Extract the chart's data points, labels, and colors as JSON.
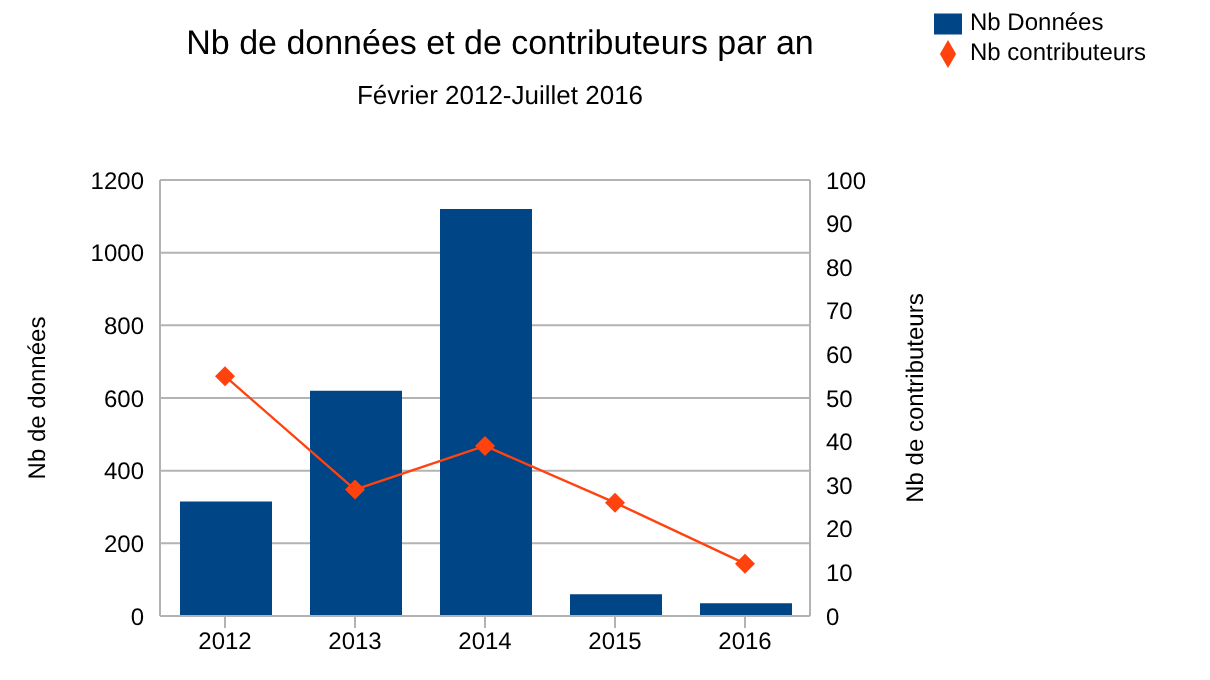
{
  "chart_data": {
    "type": "bar",
    "title": "Nb de données et de contributeurs par an",
    "subtitle": "Février 2012-Juillet 2016",
    "ylabel": "Nb de données",
    "y2label": "Nb de contributeurs",
    "categories": [
      "2012",
      "2013",
      "2014",
      "2015",
      "2016"
    ],
    "series": [
      {
        "name": "Nb Données",
        "color": "#004586",
        "values": [
          315,
          620,
          1120,
          60,
          35
        ]
      },
      {
        "name": "Nb contributeurs",
        "type": "line",
        "axis": "y2",
        "color": "#ff420e",
        "values": [
          55,
          29,
          39,
          26,
          12
        ]
      }
    ],
    "ylim": [
      0,
      1200
    ],
    "yticks": [
      0,
      200,
      400,
      600,
      800,
      1000,
      1200
    ],
    "y2lim": [
      0,
      100
    ],
    "y2ticks": [
      0,
      10,
      20,
      30,
      40,
      50,
      60,
      70,
      80,
      90,
      100
    ],
    "grid": "y",
    "legend": "top right",
    "marker": "diamond",
    "line_style": "solid"
  }
}
